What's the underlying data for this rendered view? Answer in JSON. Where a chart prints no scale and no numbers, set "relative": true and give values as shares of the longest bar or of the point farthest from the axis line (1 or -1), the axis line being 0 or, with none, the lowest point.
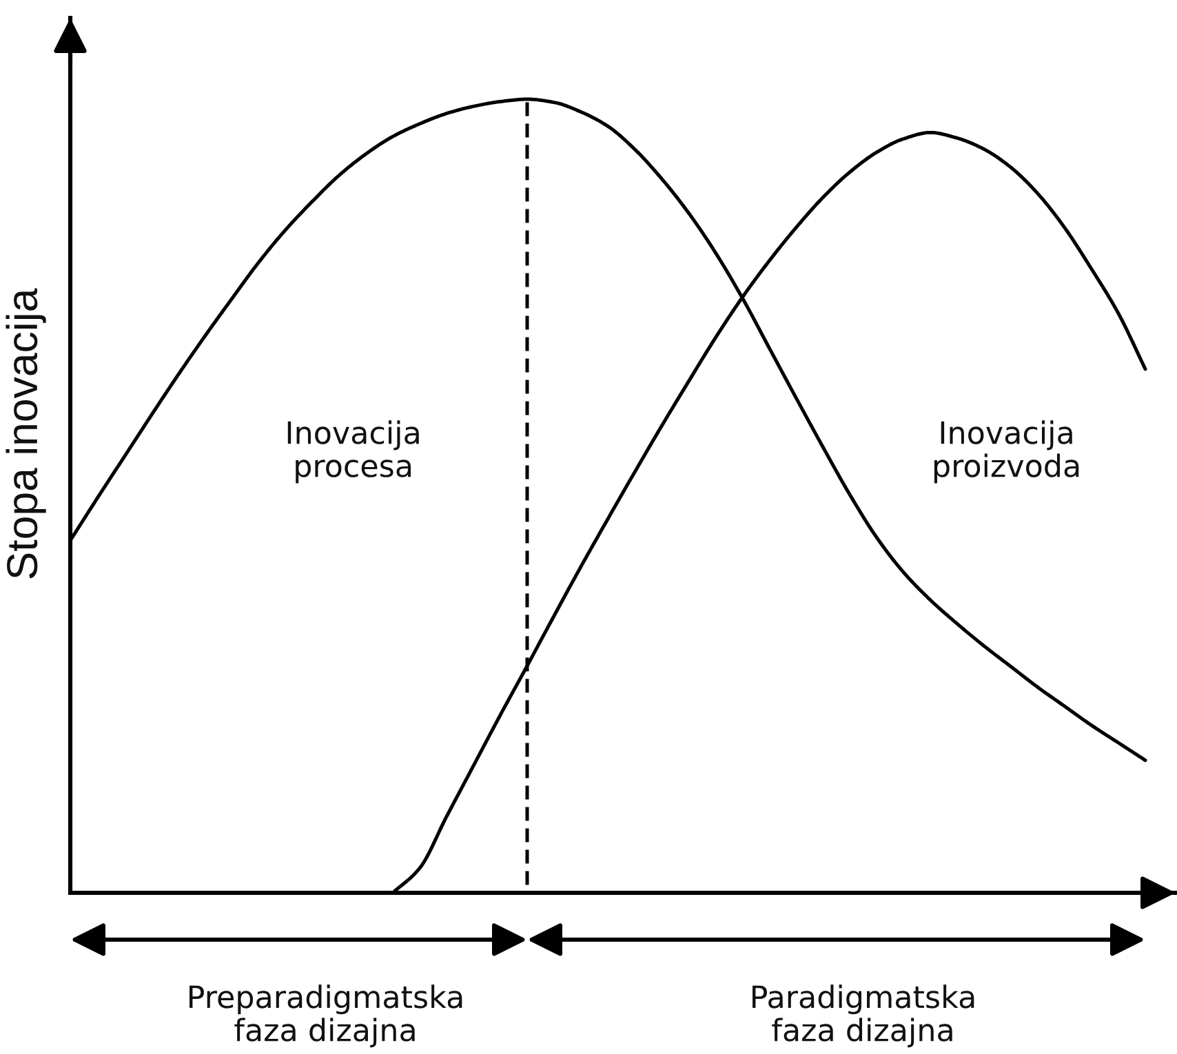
{
  "chart_data": {
    "type": "line",
    "relative": true,
    "ylabel": "Stopa inovacija",
    "categories": [
      null,
      null,
      null,
      null,
      null,
      null,
      null,
      null,
      null,
      null,
      null,
      null,
      null,
      null,
      null,
      null,
      null,
      null,
      null,
      null,
      null,
      null,
      null,
      null,
      null,
      null,
      null,
      null,
      null,
      null,
      null,
      null,
      null,
      null,
      null,
      null,
      null,
      null,
      null,
      null,
      null
    ],
    "series": [
      {
        "color": "#000000",
        "values": [
          0.444,
          0.497,
          0.549,
          0.601,
          0.652,
          0.701,
          0.748,
          0.794,
          0.835,
          0.871,
          0.904,
          0.931,
          0.953,
          0.969,
          0.982,
          0.991,
          0.997,
          1.0,
          0.996,
          0.984,
          0.966,
          0.937,
          0.9,
          0.857,
          0.807,
          0.75,
          0.687,
          0.624,
          0.562,
          0.502,
          0.448,
          0.404,
          0.369,
          0.339,
          0.311,
          0.285,
          0.259,
          0.235,
          0.211,
          0.189,
          0.167
        ]
      },
      {
        "color": "#000000",
        "values": [
          null,
          null,
          null,
          null,
          null,
          null,
          null,
          null,
          null,
          null,
          null,
          null,
          0,
          0.031,
          0.096,
          0.16,
          0.224,
          0.286,
          0.349,
          0.411,
          0.471,
          0.53,
          0.588,
          0.644,
          0.699,
          0.75,
          0.796,
          0.838,
          0.876,
          0.908,
          0.933,
          0.95,
          0.958,
          0.951,
          0.937,
          0.914,
          0.881,
          0.838,
          0.786,
          0.73,
          0.66
        ]
      }
    ],
    "annotations": [
      "Inovacija procesa",
      "Inovacija proizvoda",
      "Preparadigmatska faza dizajna",
      "Paradigmatska faza dizajna"
    ],
    "grid": false,
    "legend": false,
    "marker": "none",
    "line_style": "solid"
  }
}
